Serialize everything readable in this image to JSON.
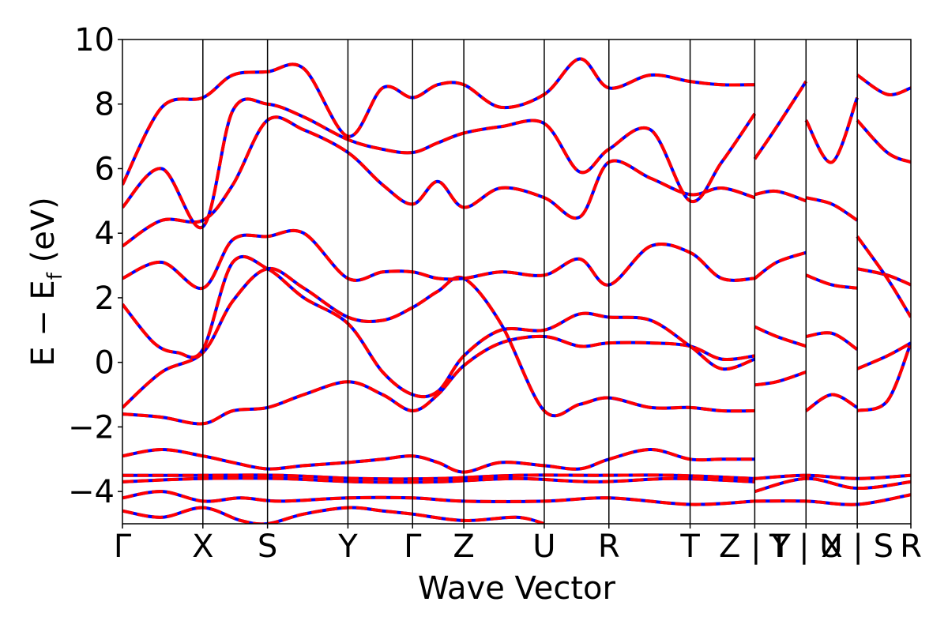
{
  "chart_data": {
    "type": "line",
    "title": "",
    "xlabel": "Wave Vector",
    "ylabel_parts": {
      "main": "E − E",
      "sub": "f",
      "unit": " (eV)"
    },
    "ylim": [
      -5,
      10
    ],
    "yticks": [
      {
        "value": 10,
        "label": "10"
      },
      {
        "value": 8,
        "label": "8"
      },
      {
        "value": 6,
        "label": "6"
      },
      {
        "value": 4,
        "label": "4"
      },
      {
        "value": 2,
        "label": "2"
      },
      {
        "value": 0,
        "label": "0"
      },
      {
        "value": -2,
        "label": "−2"
      },
      {
        "value": -4,
        "label": "−4"
      }
    ],
    "xlim": [
      0,
      1
    ],
    "kpoints": [
      {
        "label": "Γ",
        "x": 0.0
      },
      {
        "label": "X",
        "x": 0.102
      },
      {
        "label": "S",
        "x": 0.184
      },
      {
        "label": "Y",
        "x": 0.286
      },
      {
        "label": "Γ",
        "x": 0.368
      },
      {
        "label": "Z",
        "x": 0.433
      },
      {
        "label": "U",
        "x": 0.535
      },
      {
        "label": "R",
        "x": 0.617
      },
      {
        "label": "T",
        "x": 0.72
      },
      {
        "label": "Z | Y",
        "x": 0.802
      },
      {
        "label": "T | U",
        "x": 0.867
      },
      {
        "label": "X | S",
        "x": 0.932
      },
      {
        "label": "R",
        "x": 1.0
      }
    ],
    "series_styles": [
      {
        "color": "#0000ff",
        "style": "solid"
      },
      {
        "color": "#ff0000",
        "style": "dashed"
      }
    ],
    "bands": [
      {
        "x": [
          0,
          0.05,
          0.102,
          0.14,
          0.184,
          0.23,
          0.286,
          0.33,
          0.368,
          0.4,
          0.433,
          0.48,
          0.535,
          0.58,
          0.617,
          0.67,
          0.72,
          0.76,
          0.802
        ],
        "y": [
          -1.6,
          -1.7,
          -1.9,
          -1.5,
          -1.4,
          -1.0,
          -0.6,
          -1.0,
          -1.5,
          -1.0,
          -0.1,
          0.6,
          0.8,
          0.5,
          0.6,
          0.6,
          0.5,
          0.1,
          0.2
        ]
      },
      {
        "x": [
          0,
          0.05,
          0.102,
          0.14,
          0.184,
          0.23,
          0.286,
          0.33,
          0.368,
          0.4,
          0.433,
          0.48,
          0.535,
          0.58,
          0.617,
          0.67,
          0.72,
          0.76,
          0.802
        ],
        "y": [
          -1.4,
          -0.3,
          0.3,
          1.9,
          2.9,
          2.3,
          1.4,
          1.3,
          1.7,
          2.2,
          2.6,
          1.2,
          -1.5,
          -1.3,
          -1.1,
          -1.4,
          -1.4,
          -1.5,
          -1.5
        ]
      },
      {
        "x": [
          0,
          0.04,
          0.07,
          0.102,
          0.14,
          0.184,
          0.23,
          0.286,
          0.33,
          0.368,
          0.4,
          0.433,
          0.48,
          0.535,
          0.58,
          0.617,
          0.67,
          0.72,
          0.76,
          0.802
        ],
        "y": [
          1.8,
          0.6,
          0.3,
          0.4,
          3.1,
          2.9,
          2.0,
          1.2,
          -0.3,
          -1.0,
          -0.9,
          0.2,
          1.0,
          1.0,
          1.5,
          1.4,
          1.3,
          0.5,
          -0.2,
          0.1
        ]
      },
      {
        "x": [
          0,
          0.05,
          0.102,
          0.14,
          0.184,
          0.23,
          0.286,
          0.33,
          0.368,
          0.4,
          0.433,
          0.48,
          0.535,
          0.58,
          0.617,
          0.67,
          0.72,
          0.76,
          0.802
        ],
        "y": [
          2.6,
          3.1,
          2.3,
          3.8,
          3.9,
          4.0,
          2.6,
          2.8,
          2.8,
          2.6,
          2.6,
          2.8,
          2.7,
          3.2,
          2.4,
          3.6,
          3.4,
          2.6,
          2.6
        ]
      },
      {
        "x": [
          0,
          0.05,
          0.102,
          0.14,
          0.184,
          0.23,
          0.286,
          0.33,
          0.368,
          0.4,
          0.433,
          0.48,
          0.535,
          0.58,
          0.617,
          0.67,
          0.72,
          0.76,
          0.802
        ],
        "y": [
          3.6,
          4.4,
          4.4,
          5.5,
          7.5,
          7.2,
          6.5,
          5.5,
          4.9,
          5.6,
          4.8,
          5.4,
          5.1,
          4.5,
          6.2,
          5.7,
          5.2,
          5.4,
          5.1
        ]
      },
      {
        "x": [
          0,
          0.05,
          0.102,
          0.14,
          0.184,
          0.23,
          0.286,
          0.33,
          0.368,
          0.4,
          0.433,
          0.48,
          0.535,
          0.58,
          0.617,
          0.67,
          0.72,
          0.76,
          0.802
        ],
        "y": [
          4.8,
          6.0,
          4.2,
          7.8,
          8.0,
          7.6,
          6.9,
          6.6,
          6.5,
          6.8,
          7.1,
          7.3,
          7.4,
          5.9,
          6.6,
          7.2,
          5.0,
          6.2,
          7.7
        ]
      },
      {
        "x": [
          0,
          0.05,
          0.102,
          0.14,
          0.184,
          0.23,
          0.286,
          0.33,
          0.368,
          0.4,
          0.433,
          0.48,
          0.535,
          0.58,
          0.617,
          0.67,
          0.72,
          0.76,
          0.802
        ],
        "y": [
          5.5,
          7.9,
          8.2,
          8.9,
          9.0,
          9.1,
          7.0,
          8.5,
          8.2,
          8.6,
          8.6,
          7.9,
          8.3,
          9.4,
          8.5,
          8.9,
          8.7,
          8.6,
          8.6
        ]
      },
      {
        "x": [
          0,
          0.05,
          0.102,
          0.14,
          0.184,
          0.23,
          0.286,
          0.33,
          0.368,
          0.4,
          0.433,
          0.48,
          0.535,
          0.58,
          0.617,
          0.67,
          0.72,
          0.76,
          0.802
        ],
        "y": [
          -2.9,
          -2.7,
          -2.9,
          -3.1,
          -3.3,
          -3.2,
          -3.1,
          -3.0,
          -2.9,
          -3.1,
          -3.4,
          -3.1,
          -3.2,
          -3.3,
          -3.0,
          -2.7,
          -3.0,
          -3.0,
          -3.0
        ]
      },
      {
        "x": [
          0,
          0.1,
          0.2,
          0.3,
          0.4,
          0.5,
          0.6,
          0.7,
          0.802
        ],
        "y": [
          -3.5,
          -3.5,
          -3.5,
          -3.6,
          -3.6,
          -3.5,
          -3.5,
          -3.5,
          -3.6
        ]
      },
      {
        "x": [
          0,
          0.1,
          0.2,
          0.3,
          0.4,
          0.5,
          0.6,
          0.7,
          0.802
        ],
        "y": [
          -3.7,
          -3.6,
          -3.6,
          -3.7,
          -3.7,
          -3.6,
          -3.7,
          -3.6,
          -3.7
        ]
      },
      {
        "x": [
          0,
          0.05,
          0.102,
          0.15,
          0.2,
          0.286,
          0.368,
          0.433,
          0.535,
          0.617,
          0.72,
          0.802
        ],
        "y": [
          -4.2,
          -4.0,
          -4.3,
          -4.2,
          -4.3,
          -4.2,
          -4.2,
          -4.3,
          -4.3,
          -4.2,
          -4.4,
          -4.3
        ]
      },
      {
        "x": [
          0,
          0.05,
          0.102,
          0.15,
          0.184,
          0.23,
          0.286,
          0.33,
          0.368,
          0.433,
          0.5,
          0.535
        ],
        "y": [
          -4.6,
          -4.8,
          -4.5,
          -4.9,
          -5.0,
          -4.7,
          -4.5,
          -4.6,
          -4.7,
          -4.9,
          -4.8,
          -5.0
        ]
      },
      {
        "x": [
          0.802,
          0.83,
          0.867
        ],
        "y": [
          1.1,
          0.8,
          0.5
        ]
      },
      {
        "x": [
          0.802,
          0.83,
          0.867
        ],
        "y": [
          -0.7,
          -0.6,
          -0.3
        ]
      },
      {
        "x": [
          0.802,
          0.83,
          0.867
        ],
        "y": [
          2.6,
          3.1,
          3.4
        ]
      },
      {
        "x": [
          0.802,
          0.83,
          0.867
        ],
        "y": [
          5.2,
          5.3,
          5.0
        ]
      },
      {
        "x": [
          0.802,
          0.83,
          0.867
        ],
        "y": [
          6.3,
          7.3,
          8.7
        ]
      },
      {
        "x": [
          0.867,
          0.9,
          0.932
        ],
        "y": [
          0.8,
          0.9,
          0.4
        ]
      },
      {
        "x": [
          0.867,
          0.9,
          0.932
        ],
        "y": [
          -1.5,
          -1.0,
          -1.4
        ]
      },
      {
        "x": [
          0.867,
          0.9,
          0.932
        ],
        "y": [
          2.7,
          2.4,
          2.3
        ]
      },
      {
        "x": [
          0.867,
          0.9,
          0.932
        ],
        "y": [
          5.1,
          4.9,
          4.4
        ]
      },
      {
        "x": [
          0.867,
          0.9,
          0.932
        ],
        "y": [
          7.5,
          6.2,
          8.2
        ]
      },
      {
        "x": [
          0.932,
          0.97,
          1.0
        ],
        "y": [
          -1.5,
          -1.2,
          0.6
        ]
      },
      {
        "x": [
          0.932,
          0.97,
          1.0
        ],
        "y": [
          -0.2,
          0.2,
          0.6
        ]
      },
      {
        "x": [
          0.932,
          0.97,
          1.0
        ],
        "y": [
          2.9,
          2.7,
          2.4
        ]
      },
      {
        "x": [
          0.932,
          0.97,
          1.0
        ],
        "y": [
          3.9,
          2.6,
          1.4
        ]
      },
      {
        "x": [
          0.932,
          0.97,
          1.0
        ],
        "y": [
          8.9,
          8.3,
          8.5
        ]
      },
      {
        "x": [
          0.932,
          0.97,
          1.0
        ],
        "y": [
          7.5,
          6.5,
          6.2
        ]
      },
      {
        "x": [
          0.802,
          0.867,
          0.932,
          1.0
        ],
        "y": [
          -3.6,
          -3.5,
          -3.6,
          -3.5
        ]
      },
      {
        "x": [
          0.802,
          0.867,
          0.932,
          1.0
        ],
        "y": [
          -4.0,
          -3.6,
          -3.9,
          -3.7
        ]
      },
      {
        "x": [
          0.802,
          0.867,
          0.932,
          1.0
        ],
        "y": [
          -4.3,
          -4.3,
          -4.4,
          -4.1
        ]
      }
    ]
  }
}
